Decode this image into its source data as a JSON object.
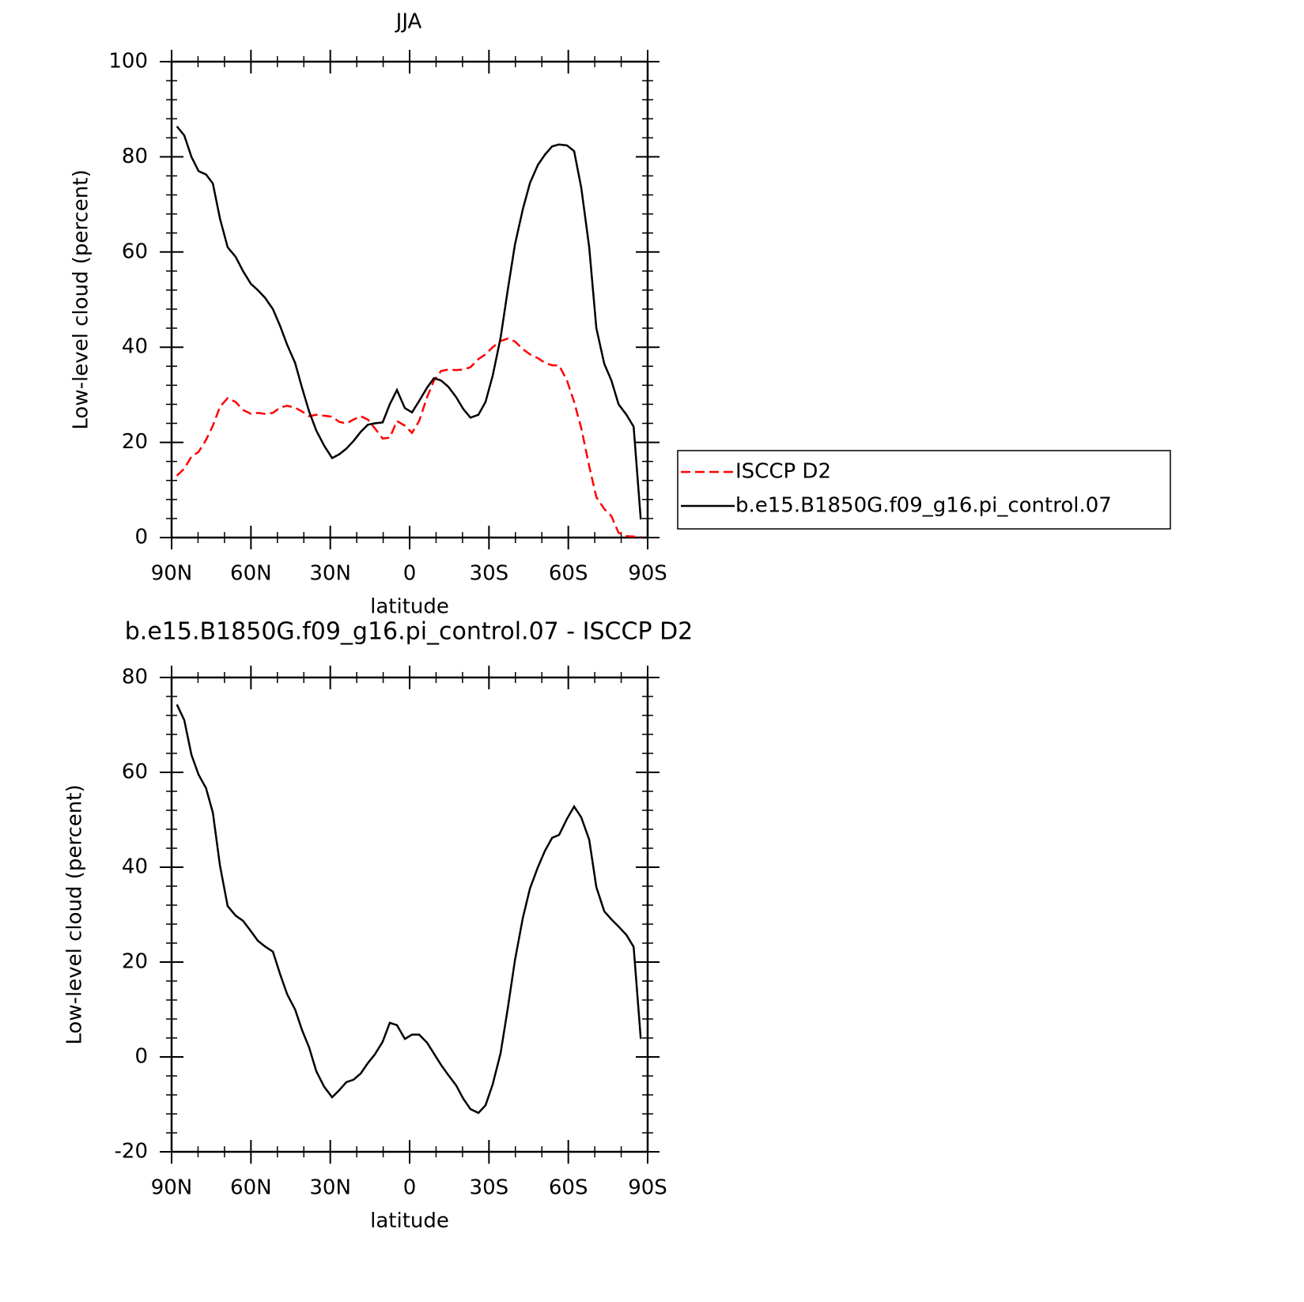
{
  "chart_data": [
    {
      "type": "line",
      "title": "JJA",
      "xlabel": "latitude",
      "ylabel": "Low-level cloud (percent)",
      "xlim": [
        90,
        -90
      ],
      "xticks": [
        {
          "value": 90,
          "label": "90N"
        },
        {
          "value": 60,
          "label": "60N"
        },
        {
          "value": 30,
          "label": "30N"
        },
        0,
        {
          "value": -30,
          "label": "30S"
        },
        {
          "value": -60,
          "label": "60S"
        },
        {
          "value": -90,
          "label": "90S"
        }
      ],
      "ylim": [
        0,
        100
      ],
      "yticks": [
        0,
        20,
        40,
        60,
        80,
        100
      ],
      "legend": "right",
      "x": [
        88,
        85.2,
        82.5,
        79.8,
        77,
        74.4,
        71.7,
        68.8,
        65.8,
        63,
        60,
        57.4,
        54.7,
        51.7,
        49,
        46.3,
        43.3,
        40.7,
        38,
        35.3,
        32.3,
        29.3,
        26.6,
        23.9,
        21.2,
        18.5,
        15.8,
        13.2,
        10.2,
        7.5,
        4.8,
        1.8,
        -0.9,
        -3.6,
        -6.6,
        -9.2,
        -11.9,
        -14.6,
        -17.6,
        -20.3,
        -23,
        -26,
        -28.7,
        -31.4,
        -34.4,
        -37.1,
        -39.8,
        -42.8,
        -45.5,
        -48.5,
        -51.2,
        -53.9,
        -56.5,
        -59.5,
        -62.2,
        -64.9,
        -67.9,
        -70.6,
        -73.6,
        -76.3,
        -79,
        -82,
        -84.7,
        -87.4
      ],
      "series": [
        {
          "name": "ISCCP D2",
          "color": "#ff0000",
          "dash": true,
          "values": [
            13,
            14.5,
            17,
            18,
            20.5,
            23.5,
            27.5,
            29.3,
            28.5,
            26.8,
            26,
            26.2,
            26,
            26.2,
            27.3,
            27.7,
            27.3,
            26.5,
            25.5,
            25.8,
            25.6,
            25.4,
            24.3,
            24,
            24.8,
            25.5,
            24.8,
            23,
            20.8,
            21,
            24.5,
            23.5,
            22,
            24.5,
            29.5,
            33,
            35,
            35.3,
            35.2,
            35.3,
            35.8,
            37.5,
            38.5,
            40,
            41.3,
            41.8,
            41.2,
            39.6,
            38.5,
            37.7,
            36.7,
            36.2,
            36.2,
            33,
            28.5,
            23,
            15,
            8.5,
            6,
            4.5,
            1,
            0.3,
            0.2,
            0.1
          ]
        },
        {
          "name": "b.e15.B1850G.f09_g16.pi_control.07",
          "color": "#000000",
          "dash": false,
          "values": [
            86.4,
            84.5,
            80,
            77,
            76.3,
            74.4,
            67,
            61,
            59,
            56,
            53.3,
            52,
            50.4,
            48,
            44.5,
            40.5,
            36.7,
            31.5,
            26.5,
            22.5,
            19.3,
            16.7,
            17.5,
            18.7,
            20.3,
            22.2,
            23.7,
            24,
            24.2,
            28,
            31,
            27.2,
            26.3,
            28.7,
            31.5,
            33.5,
            33,
            31.7,
            29.5,
            27,
            25.2,
            25.8,
            28.5,
            34,
            42,
            52,
            61.5,
            69,
            74.5,
            78.3,
            80.5,
            82.2,
            82.6,
            82.4,
            81.2,
            73.5,
            61,
            44,
            36.5,
            33,
            28,
            25.8,
            23.3,
            3.8
          ]
        }
      ]
    },
    {
      "type": "line",
      "title": "b.e15.B1850G.f09_g16.pi_control.07 - ISCCP D2",
      "xlabel": "latitude",
      "ylabel": "Low-level cloud (percent)",
      "xlim": [
        90,
        -90
      ],
      "xticks": [
        {
          "value": 90,
          "label": "90N"
        },
        {
          "value": 60,
          "label": "60N"
        },
        {
          "value": 30,
          "label": "30N"
        },
        0,
        {
          "value": -30,
          "label": "30S"
        },
        {
          "value": -60,
          "label": "60S"
        },
        {
          "value": -90,
          "label": "90S"
        }
      ],
      "ylim": [
        -20,
        80
      ],
      "yticks": [
        -20,
        0,
        20,
        40,
        60,
        80
      ],
      "x": [
        88,
        85.2,
        82.5,
        79.8,
        77,
        74.4,
        71.7,
        68.8,
        65.8,
        63,
        60,
        57.4,
        54.7,
        51.7,
        49,
        46.3,
        43.3,
        40.7,
        38,
        35.3,
        32.3,
        29.3,
        26.6,
        23.9,
        21.2,
        18.5,
        15.8,
        13.2,
        10.2,
        7.5,
        4.8,
        1.8,
        -0.9,
        -3.6,
        -6.6,
        -9.2,
        -11.9,
        -14.6,
        -17.6,
        -20.3,
        -23,
        -26,
        -28.7,
        -31.4,
        -34.4,
        -37.1,
        -39.8,
        -42.8,
        -45.5,
        -48.5,
        -51.2,
        -53.9,
        -56.5,
        -59.5,
        -62.2,
        -64.9,
        -67.9,
        -70.6,
        -73.6,
        -76.3,
        -79,
        -82,
        -84.7,
        -87.4
      ],
      "series": [
        {
          "color": "#000000",
          "dash": false,
          "values": [
            74.3,
            71,
            63.7,
            59.5,
            56.7,
            51.5,
            40.3,
            31.8,
            29.8,
            28.7,
            26.5,
            24.5,
            23.3,
            22.2,
            17.5,
            13.2,
            10,
            5.7,
            2,
            -3,
            -6.3,
            -8.5,
            -7,
            -5.3,
            -4.8,
            -3.5,
            -1.3,
            0.5,
            3.2,
            7.2,
            6.7,
            3.8,
            4.7,
            4.7,
            3,
            0.7,
            -1.7,
            -3.8,
            -6,
            -8.8,
            -11,
            -11.8,
            -10.2,
            -5.8,
            0.8,
            10.2,
            20.3,
            29.3,
            35.5,
            40,
            43.5,
            46.2,
            46.8,
            50.2,
            52.8,
            50.5,
            45.8,
            35.8,
            30.7,
            29,
            27.5,
            25.7,
            23.2,
            3.8
          ]
        }
      ]
    }
  ]
}
